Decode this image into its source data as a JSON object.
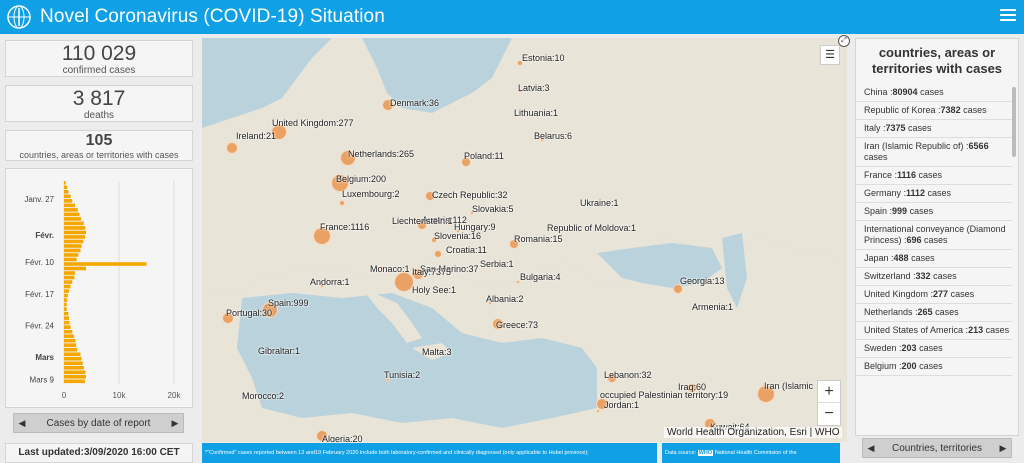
{
  "header": {
    "title": "Novel Coronavirus (COVID-19) Situation"
  },
  "stats": {
    "confirmed": {
      "value": "110 029",
      "label": "confirmed cases"
    },
    "deaths": {
      "value": "3 817",
      "label": "deaths"
    },
    "countries": {
      "value": "105",
      "label": "countries, areas or territories with cases"
    }
  },
  "daily_chart": {
    "pager_label": "Cases by date of report",
    "x_ticks": [
      "0",
      "10k",
      "20k"
    ],
    "y_ticks": [
      "Janv. 27",
      "Févr.",
      "Févr. 10",
      "Févr. 17",
      "Févr. 24",
      "Mars",
      "Mars 9"
    ],
    "chart_data": {
      "type": "bar",
      "orientation": "horizontal",
      "xlim": [
        0,
        20000
      ],
      "values": [
        300,
        600,
        800,
        1200,
        1500,
        2000,
        2500,
        2800,
        3100,
        3600,
        3900,
        4000,
        3800,
        3500,
        3200,
        3000,
        2600,
        2300,
        15000,
        4000,
        2000,
        1900,
        1500,
        1200,
        900,
        700,
        600,
        500,
        500,
        800,
        900,
        1000,
        1200,
        1500,
        1800,
        2100,
        2200,
        2400,
        3000,
        3200,
        3400,
        3600,
        3900,
        4000,
        3800
      ]
    }
  },
  "updated": "Last updated:3/09/2020 16:00 CET",
  "map": {
    "labels": [
      "Estonia:10",
      "Latvia:3",
      "Lithuania:1",
      "Denmark:36",
      "Belarus:6",
      "United Kingdom:277",
      "Ireland:21",
      "Netherlands:265",
      "Poland:11",
      "Belgium:200",
      "Luxembourg:2",
      "Czech Republic:32",
      "Ukraine:1",
      "Slovakia:5",
      "Austria:112",
      "France:1116",
      "Liechtenstein:1",
      "Hungary:9",
      "Republic of Moldova:1",
      "Slovenia:16",
      "Romania:15",
      "Croatia:11",
      "Monaco:1",
      "San Marino:37",
      "Serbia:1",
      "Italy:7375",
      "Andorra:1",
      "Bulgaria:4",
      "Georgia:13",
      "Holy See:1",
      "Spain:999",
      "Albania:2",
      "Armenia:1",
      "Portugal:30",
      "Greece:73",
      "Gibraltar:1",
      "Malta:3",
      "Lebanon:32",
      "Tunisia:2",
      "Iraq:60",
      "Iran (Islamic",
      "occupied Palestinian territory:19",
      "Morocco:2",
      "Jordan:1",
      "Kuwait:64",
      "Algeria:20"
    ],
    "attribution": "World Health Organization, Esri | WHO",
    "legend_icon": "legend-list-icon",
    "expand_icon": "expand-icon",
    "zoom_in": "+",
    "zoom_out": "−"
  },
  "notes": {
    "note1": "*\"Confirmed\" cases reported between 13 and19 February 2020 include both laboratory-confirmed and clinically diagnosed (only  applicable to Hubei province);",
    "note2_prefix": "Data source:",
    "note2_who": "WHO",
    "note2_suffix": "National Health Commision of the"
  },
  "right_panel": {
    "title": "countries, areas or territories with cases",
    "items": [
      {
        "name": "China :",
        "count": "80904",
        "unit": "cases"
      },
      {
        "name": "Republic of Korea :",
        "count": "7382",
        "unit": "cases"
      },
      {
        "name": "Italy :",
        "count": "7375",
        "unit": "cases"
      },
      {
        "name": "Iran (Islamic Republic of) :",
        "count": "6566",
        "unit": "cases"
      },
      {
        "name": "France :",
        "count": "1116",
        "unit": "cases"
      },
      {
        "name": "Germany :",
        "count": "1112",
        "unit": "cases"
      },
      {
        "name": "Spain :",
        "count": "999",
        "unit": "cases"
      },
      {
        "name": "International conveyance (Diamond Princess) :",
        "count": "696",
        "unit": "cases"
      },
      {
        "name": "Japan :",
        "count": "488",
        "unit": "cases"
      },
      {
        "name": "Switzerland :",
        "count": "332",
        "unit": "cases"
      },
      {
        "name": "United Kingdom :",
        "count": "277",
        "unit": "cases"
      },
      {
        "name": "Netherlands :",
        "count": "265",
        "unit": "cases"
      },
      {
        "name": "United States of America :",
        "count": "213",
        "unit": "cases"
      },
      {
        "name": "Sweden :",
        "count": "203",
        "unit": "cases"
      },
      {
        "name": "Belgium :",
        "count": "200",
        "unit": "cases"
      }
    ],
    "pager_label": "Countries, territories"
  },
  "colors": {
    "header": "#0fa0e6",
    "bars": "#f5a700",
    "bubble": "#ea9650",
    "sea": "#b9d2dc",
    "land": "#e8e4d8"
  }
}
